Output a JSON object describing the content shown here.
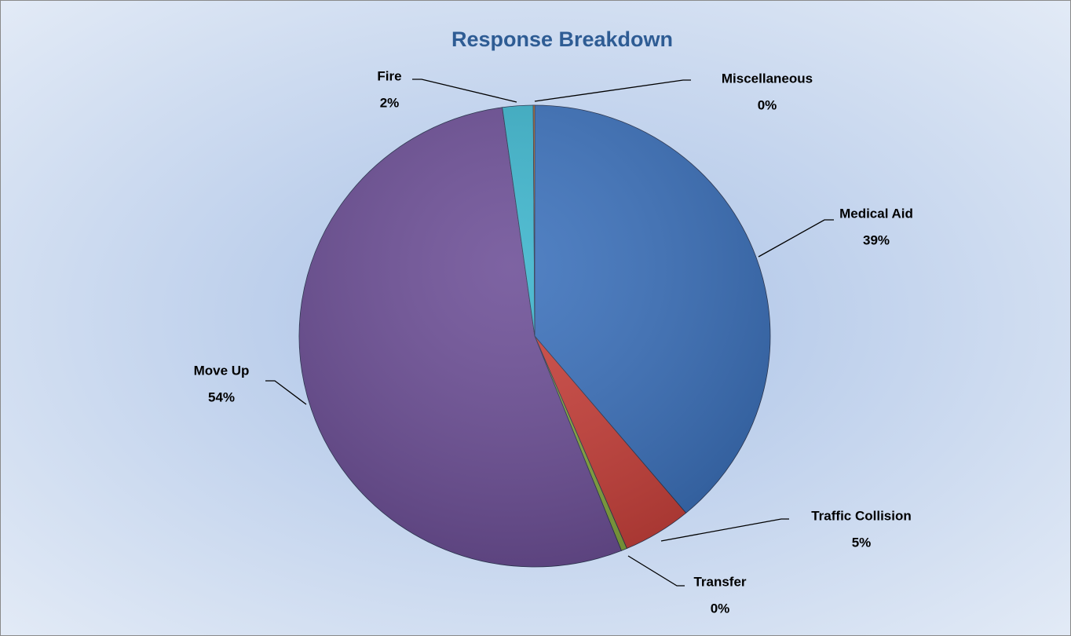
{
  "chart_data": {
    "type": "pie",
    "title": "Response Breakdown",
    "categories": [
      "Medical Aid",
      "Traffic Collision",
      "Transfer",
      "Move Up",
      "Fire",
      "Miscellaneous"
    ],
    "values": [
      38.9,
      4.7,
      0.4,
      53.8,
      2.1,
      0.1
    ],
    "value_labels": [
      "39%",
      "5%",
      "0%",
      "54%",
      "2%",
      "0%"
    ],
    "colors": [
      "#3a70bb",
      "#c9403a",
      "#86a83e",
      "#6c4e96",
      "#3bb4cc",
      "#e8892c"
    ]
  }
}
